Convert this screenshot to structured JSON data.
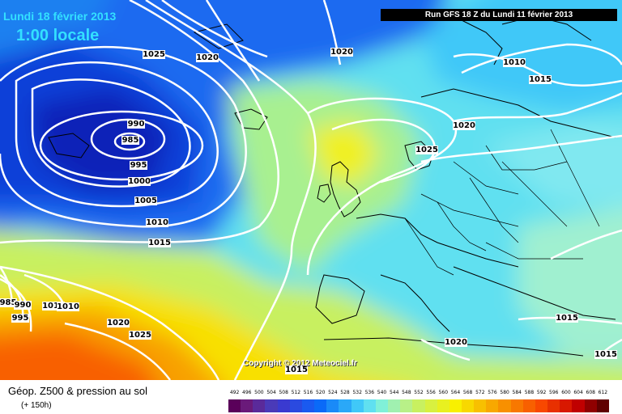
{
  "header": {
    "date_line": "Lundi 18 février 2013",
    "time_line": "1:00 locale",
    "run_info": "Run GFS 18 Z du Lundi 11 février 2013"
  },
  "copyright": "Copyright © 2012 Meteociel.fr",
  "footer": {
    "product": "Géop. Z500 & pression au sol",
    "lead_time": "(+ 150h)"
  },
  "legend": {
    "ticks": [
      "492",
      "496",
      "500",
      "504",
      "508",
      "512",
      "516",
      "520",
      "524",
      "528",
      "532",
      "536",
      "540",
      "544",
      "548",
      "552",
      "556",
      "560",
      "564",
      "568",
      "572",
      "576",
      "580",
      "584",
      "588",
      "592",
      "596",
      "600",
      "604",
      "608",
      "612"
    ],
    "colors": [
      "#5a005a",
      "#6a1a7a",
      "#5a2a9a",
      "#4a3ab8",
      "#3a3ad0",
      "#2a4ae0",
      "#1a5af0",
      "#0a6af8",
      "#1a8af8",
      "#2aa8f8",
      "#40c8f8",
      "#60e0f0",
      "#80f0d8",
      "#a0f0b0",
      "#b8f088",
      "#c8f060",
      "#d8f040",
      "#e8f020",
      "#f8f000",
      "#f8d800",
      "#f8c000",
      "#f8a800",
      "#f89000",
      "#f87800",
      "#f86000",
      "#f84800",
      "#e83000",
      "#d81800",
      "#c00000",
      "#900000",
      "#600000"
    ]
  },
  "isobar_labels": [
    {
      "id": "l1025a",
      "text": "1025"
    },
    {
      "id": "l1020a",
      "text": "1020"
    },
    {
      "id": "l1020b",
      "text": "1020"
    },
    {
      "id": "l1010a",
      "text": "1010"
    },
    {
      "id": "l1015a",
      "text": "1015"
    },
    {
      "id": "l990",
      "text": "990"
    },
    {
      "id": "l985",
      "text": "985"
    },
    {
      "id": "l995",
      "text": "995"
    },
    {
      "id": "l1000",
      "text": "1000"
    },
    {
      "id": "l1005",
      "text": "1005"
    },
    {
      "id": "l1010b",
      "text": "1010"
    },
    {
      "id": "l1015b",
      "text": "1015"
    },
    {
      "id": "l1020c",
      "text": "1020"
    },
    {
      "id": "l1025b",
      "text": "1025"
    },
    {
      "id": "l1025c",
      "text": "1025"
    },
    {
      "id": "l1020d",
      "text": "1020"
    },
    {
      "id": "l985b",
      "text": "985"
    },
    {
      "id": "l990b",
      "text": "990"
    },
    {
      "id": "l995b",
      "text": "995"
    },
    {
      "id": "l1010c",
      "text": "1010"
    },
    {
      "id": "l1010d",
      "text": "1010"
    },
    {
      "id": "l1020e",
      "text": "1020"
    },
    {
      "id": "l1015c",
      "text": "1015"
    },
    {
      "id": "l1015d",
      "text": "1015"
    },
    {
      "id": "l1015e",
      "text": "1015"
    }
  ]
}
